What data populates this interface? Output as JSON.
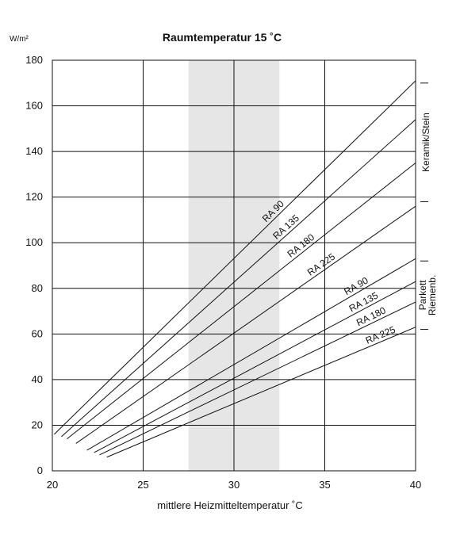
{
  "chart_data": {
    "type": "line",
    "title": "Raumtemperatur 15 ˚C",
    "xlabel": "mittlere Heizmitteltemperatur ˚C",
    "ylabel": "W/m²",
    "xlim": [
      20,
      40
    ],
    "ylim": [
      0,
      180
    ],
    "xticks": [
      "20",
      "25",
      "30",
      "35",
      "40"
    ],
    "yticks": [
      "0",
      "20",
      "40",
      "60",
      "80",
      "100",
      "120",
      "140",
      "160",
      "180"
    ],
    "grid": true,
    "shaded_band": {
      "x": [
        27.5,
        32.5
      ],
      "color": "#e6e6e6"
    },
    "series_groups": [
      {
        "name": "Keramik/Stein",
        "range": [
          118,
          170
        ]
      },
      {
        "name": "Parkett Riemenb.",
        "range": [
          62,
          92
        ]
      }
    ],
    "series": [
      {
        "name": "RA 90",
        "group": "Keramik/Stein",
        "x": [
          20.1,
          40
        ],
        "y": [
          16,
          171
        ]
      },
      {
        "name": "RA 135",
        "group": "Keramik/Stein",
        "x": [
          20.5,
          40
        ],
        "y": [
          15,
          154
        ]
      },
      {
        "name": "RA 180",
        "group": "Keramik/Stein",
        "x": [
          20.8,
          40
        ],
        "y": [
          14,
          135
        ]
      },
      {
        "name": "RA 225",
        "group": "Keramik/Stein",
        "x": [
          21.3,
          40
        ],
        "y": [
          12,
          116
        ]
      },
      {
        "name": "RA 90",
        "group": "Parkett Riemenb.",
        "x": [
          21.9,
          40
        ],
        "y": [
          9,
          93
        ]
      },
      {
        "name": "RA 135",
        "group": "Parkett Riemenb.",
        "x": [
          22.3,
          40
        ],
        "y": [
          8,
          83
        ]
      },
      {
        "name": "RA 180",
        "group": "Parkett Riemenb.",
        "x": [
          22.6,
          40
        ],
        "y": [
          7,
          74
        ]
      },
      {
        "name": "RA 225",
        "group": "Parkett Riemenb.",
        "x": [
          23.0,
          40
        ],
        "y": [
          6,
          63
        ]
      }
    ],
    "label_positions_x": [
      32.4,
      33.1,
      33.9,
      35.0,
      36.9,
      37.3,
      37.7,
      38.2
    ]
  }
}
